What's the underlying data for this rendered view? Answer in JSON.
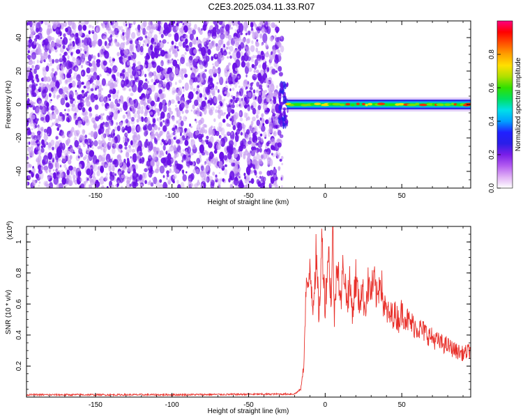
{
  "figure": {
    "title": "C2E3.2025.034.11.33.R07"
  },
  "colors": {
    "snr_line": "#e8302a",
    "noise_dark": "#6a10e6",
    "noise_light": "#c79cf2",
    "colormap": [
      "#ffffff",
      "#e0b0f5",
      "#b35cf0",
      "#7a1ee8",
      "#2a1ee8",
      "#2020ff",
      "#00a0ff",
      "#00e0e8",
      "#00e060",
      "#30e000",
      "#b0e000",
      "#ffe000",
      "#ffa000",
      "#ff5000",
      "#ff0000",
      "#ff0080"
    ]
  },
  "chart_data": [
    {
      "type": "heatmap",
      "title": "",
      "xlabel": "Height of straight line (km)",
      "ylabel": "Frequency (Hz)",
      "xlim": [
        -195,
        95
      ],
      "ylim": [
        -50,
        50
      ],
      "xticks": [
        -150,
        -100,
        -50,
        0,
        50
      ],
      "yticks": [
        -40,
        -20,
        0,
        20,
        40
      ],
      "colorbar": {
        "label": "Normalized spectral amplitude",
        "range": [
          0.0,
          1.0
        ],
        "ticks": [
          0.0,
          0.2,
          0.4,
          0.6,
          0.8
        ]
      },
      "regions": {
        "broadband_noise_x": [
          -195,
          -28
        ],
        "signal_x": [
          -28,
          95
        ],
        "signal_frequency_hz": 0
      }
    },
    {
      "type": "line",
      "title": "",
      "xlabel": "Height of straight line (km)",
      "ylabel": "SNR (10 * v/v)",
      "scale_label": "(x10^4)",
      "xlim": [
        -195,
        95
      ],
      "ylim": [
        0,
        1.1
      ],
      "xticks": [
        -150,
        -100,
        -50,
        0,
        50
      ],
      "yticks": [
        0.2,
        0.4,
        0.6,
        0.8,
        1.0
      ],
      "series": [
        {
          "x": [
            -195,
            -150,
            -100,
            -50,
            -20,
            -16,
            -15,
            -14,
            -13,
            -12,
            -11,
            -10,
            -8,
            -6,
            -4,
            -2,
            0,
            2,
            4,
            5,
            6,
            8,
            10,
            12,
            14,
            16,
            18,
            20,
            22,
            24,
            26,
            28,
            30,
            32,
            34,
            36,
            38,
            40,
            42,
            45,
            48,
            50,
            55,
            60,
            65,
            70,
            75,
            80,
            85,
            90,
            95
          ],
          "values": [
            0.015,
            0.015,
            0.015,
            0.018,
            0.02,
            0.05,
            0.12,
            0.2,
            0.55,
            0.78,
            0.62,
            0.85,
            0.6,
            0.9,
            0.52,
            1.02,
            0.58,
            0.96,
            0.62,
            1.08,
            0.5,
            0.95,
            0.58,
            0.88,
            0.62,
            0.72,
            0.55,
            0.78,
            0.6,
            0.7,
            0.58,
            0.72,
            0.68,
            0.74,
            0.62,
            0.8,
            0.6,
            0.55,
            0.52,
            0.54,
            0.5,
            0.55,
            0.48,
            0.45,
            0.42,
            0.38,
            0.35,
            0.33,
            0.3,
            0.28,
            0.3
          ]
        }
      ]
    }
  ]
}
